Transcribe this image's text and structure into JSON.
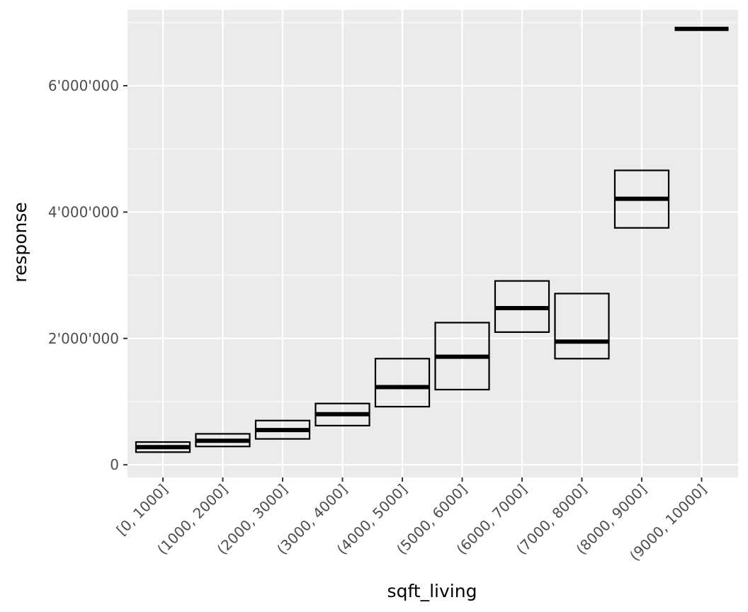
{
  "chart_data": {
    "type": "crossbar",
    "title": "",
    "xlabel": "sqft_living",
    "ylabel": "response",
    "ylim": [
      -200000,
      7200000
    ],
    "y_ticks": [
      0,
      2000000,
      4000000,
      6000000
    ],
    "y_tick_labels": [
      "0",
      "2'000'000",
      "4'000'000",
      "6'000'000"
    ],
    "categories": [
      "[0, 1000]",
      "(1000, 2000]",
      "(2000, 3000]",
      "(3000, 4000]",
      "(4000, 5000]",
      "(5000, 6000]",
      "(6000, 7000]",
      "(7000, 8000]",
      "(8000, 9000]",
      "(9000, 10000]"
    ],
    "series": [
      {
        "name": "lower",
        "values": [
          200000,
          290000,
          410000,
          620000,
          920000,
          1190000,
          2100000,
          1680000,
          3750000,
          6900000
        ]
      },
      {
        "name": "middle",
        "values": [
          280000,
          380000,
          550000,
          800000,
          1230000,
          1710000,
          2480000,
          1950000,
          4210000,
          6900000
        ]
      },
      {
        "name": "upper",
        "values": [
          360000,
          490000,
          700000,
          970000,
          1680000,
          2250000,
          2910000,
          2710000,
          4660000,
          6900000
        ]
      }
    ],
    "grid": true,
    "background": "#ebebeb",
    "grid_color": "#ffffff",
    "box_color": "#000000"
  }
}
